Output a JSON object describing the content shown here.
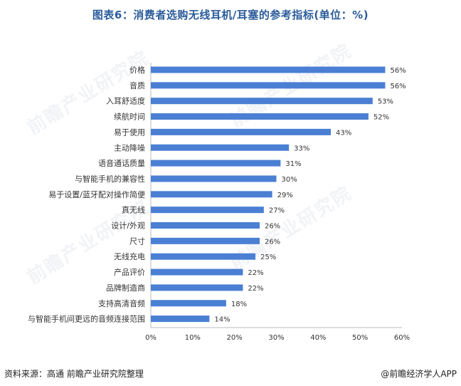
{
  "title": "图表6：消费者选购无线耳机/耳塞的参考指标(单位：%)",
  "source": "资料来源：高通 前瞻产业研究院整理",
  "brand": "@前瞻经济学人APP",
  "watermark_text": "前瞻产业研究院",
  "colors": {
    "bar": "#4a7fd4",
    "title": "#2b5c9a",
    "axis": "#bbbbbb",
    "text": "#333333"
  },
  "chart_data": {
    "type": "bar",
    "orientation": "horizontal",
    "title": "图表6：消费者选购无线耳机/耳塞的参考指标(单位：%)",
    "categories": [
      "价格",
      "音质",
      "入耳舒适度",
      "续航时间",
      "易于使用",
      "主动降噪",
      "语音通话质量",
      "与智能手机的兼容性",
      "易于设置/蓝牙配对操作简便",
      "真无线",
      "设计/外观",
      "尺寸",
      "无线充电",
      "产品评价",
      "品牌制造商",
      "支持高清音频",
      "与智能手机间更远的音频连接范围"
    ],
    "values": [
      56,
      56,
      53,
      52,
      43,
      33,
      31,
      30,
      29,
      27,
      26,
      26,
      25,
      22,
      22,
      18,
      14
    ],
    "value_labels": [
      "56%",
      "56%",
      "53%",
      "52%",
      "43%",
      "33%",
      "31%",
      "30%",
      "29%",
      "27%",
      "26%",
      "26%",
      "25%",
      "22%",
      "22%",
      "18%",
      "14%"
    ],
    "xlim": [
      0,
      60
    ],
    "xticks": [
      "0%",
      "10%",
      "20%",
      "30%",
      "40%",
      "50%",
      "60%"
    ],
    "grid": false,
    "legend": "none"
  }
}
